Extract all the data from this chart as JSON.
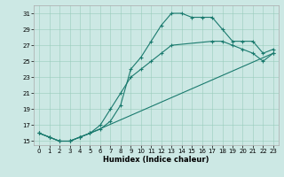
{
  "xlabel": "Humidex (Indice chaleur)",
  "background_color": "#cce8e4",
  "line_color": "#1a7a6e",
  "xlim": [
    -0.5,
    23.5
  ],
  "ylim": [
    14.5,
    32
  ],
  "xticks": [
    0,
    1,
    2,
    3,
    4,
    5,
    6,
    7,
    8,
    9,
    10,
    11,
    12,
    13,
    14,
    15,
    16,
    17,
    18,
    19,
    20,
    21,
    22,
    23
  ],
  "yticks": [
    15,
    17,
    19,
    21,
    23,
    25,
    27,
    29,
    31
  ],
  "curves": [
    {
      "x": [
        0,
        1,
        2,
        3,
        4,
        5,
        6,
        7,
        8,
        9,
        10,
        11,
        12,
        13,
        14,
        15,
        16,
        17,
        18,
        19,
        20,
        21,
        22,
        23
      ],
      "y": [
        16,
        15.5,
        15,
        15,
        15.5,
        16,
        16.5,
        17.5,
        19.5,
        24,
        25.5,
        27.5,
        29.5,
        31,
        31,
        30.5,
        30.5,
        30.5,
        29,
        27.5,
        27.5,
        27.5,
        26,
        26.5
      ]
    },
    {
      "x": [
        0,
        1,
        2,
        3,
        4,
        5,
        6,
        7,
        8,
        9,
        10,
        11,
        12,
        13,
        17,
        18,
        19,
        20,
        21,
        22,
        23
      ],
      "y": [
        16,
        15.5,
        15,
        15,
        15.5,
        16,
        17,
        19,
        21,
        23,
        24,
        25,
        26,
        27,
        27.5,
        27.5,
        27,
        26.5,
        26,
        25,
        26
      ]
    },
    {
      "x": [
        0,
        1,
        2,
        3,
        4,
        5,
        23
      ],
      "y": [
        16,
        15.5,
        15,
        15,
        15.5,
        16,
        26
      ]
    }
  ]
}
